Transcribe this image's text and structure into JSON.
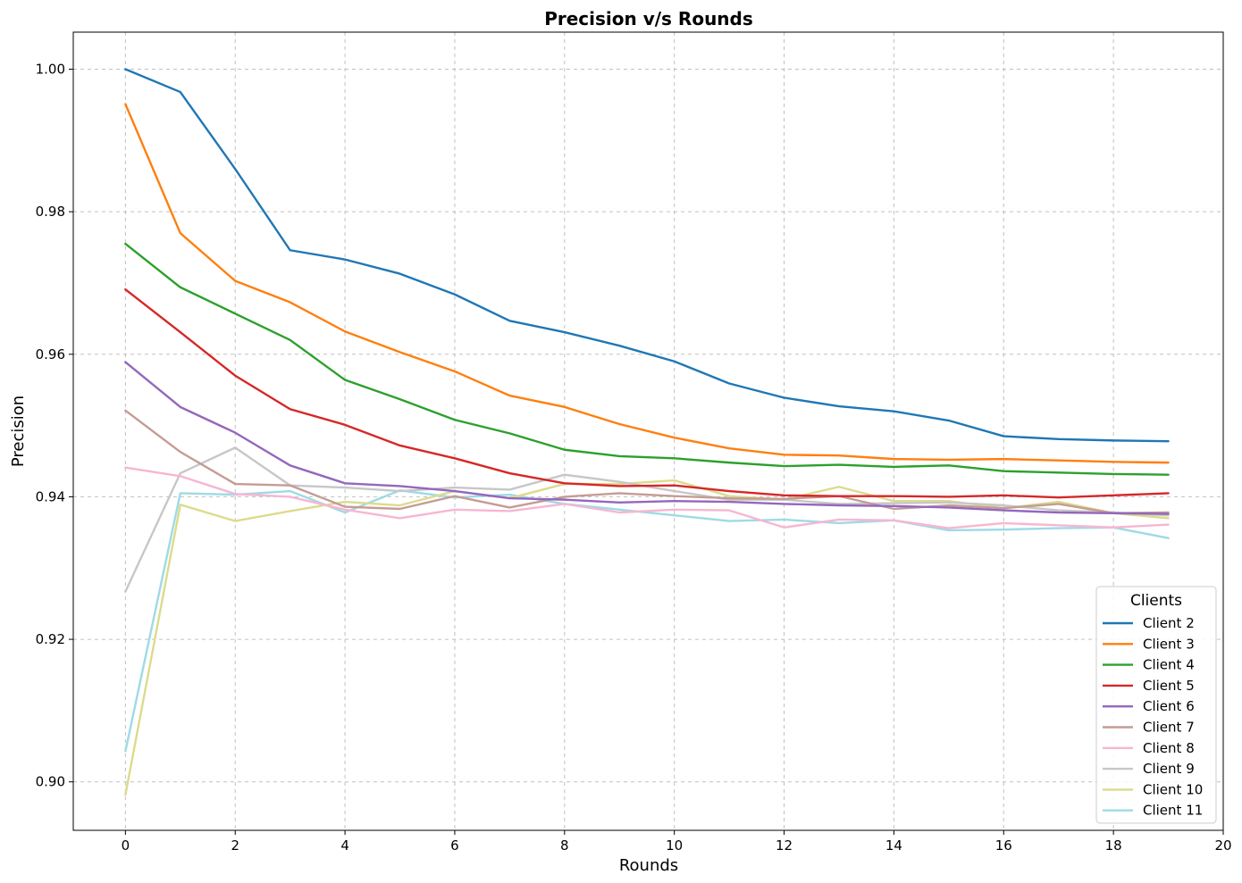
{
  "chart_data": {
    "type": "line",
    "title": "Precision v/s Rounds",
    "xlabel": "Rounds",
    "ylabel": "Precision",
    "xlim": [
      -0.95,
      20
    ],
    "ylim": [
      0.8932,
      1.0052
    ],
    "xticks": [
      0,
      2,
      4,
      6,
      8,
      10,
      12,
      14,
      16,
      18,
      20
    ],
    "yticks": [
      0.9,
      0.92,
      0.94,
      0.96,
      0.98,
      1.0
    ],
    "ytick_labels": [
      "0.90",
      "0.92",
      "0.94",
      "0.96",
      "0.98",
      "1.00"
    ],
    "grid": true,
    "legend": {
      "title": "Clients",
      "placement": "lower-right"
    },
    "x": [
      0,
      1,
      2,
      3,
      4,
      5,
      6,
      7,
      8,
      9,
      10,
      11,
      12,
      13,
      14,
      15,
      16,
      17,
      18,
      19
    ],
    "series": [
      {
        "name": "Client 2",
        "color": "#1f77b4",
        "values": [
          1.0,
          0.9968,
          0.986,
          0.9746,
          0.9733,
          0.9713,
          0.9684,
          0.9647,
          0.9631,
          0.9612,
          0.959,
          0.9559,
          0.9539,
          0.9527,
          0.952,
          0.9507,
          0.9485,
          0.9481,
          0.9479,
          0.9478
        ]
      },
      {
        "name": "Client 3",
        "color": "#ff7f0e",
        "values": [
          0.9951,
          0.977,
          0.9703,
          0.9673,
          0.9632,
          0.9603,
          0.9576,
          0.9542,
          0.9526,
          0.9502,
          0.9483,
          0.9468,
          0.9459,
          0.9458,
          0.9453,
          0.9452,
          0.9453,
          0.9451,
          0.9449,
          0.9448
        ]
      },
      {
        "name": "Client 4",
        "color": "#2ca02c",
        "values": [
          0.9755,
          0.9694,
          0.9657,
          0.962,
          0.9564,
          0.9537,
          0.9508,
          0.9489,
          0.9466,
          0.9457,
          0.9454,
          0.9448,
          0.9443,
          0.9445,
          0.9442,
          0.9444,
          0.9436,
          0.9434,
          0.9432,
          0.9431
        ]
      },
      {
        "name": "Client 5",
        "color": "#d62728",
        "values": [
          0.9691,
          0.9631,
          0.957,
          0.9523,
          0.9501,
          0.9472,
          0.9454,
          0.9433,
          0.9419,
          0.9415,
          0.9416,
          0.9408,
          0.9402,
          0.9401,
          0.9401,
          0.94,
          0.9402,
          0.9399,
          0.9402,
          0.9405
        ]
      },
      {
        "name": "Client 6",
        "color": "#9467bd",
        "values": [
          0.9589,
          0.9526,
          0.949,
          0.9444,
          0.9419,
          0.9415,
          0.9408,
          0.9398,
          0.9396,
          0.9392,
          0.9394,
          0.9393,
          0.939,
          0.9388,
          0.9387,
          0.9385,
          0.9381,
          0.9378,
          0.9377,
          0.9376
        ]
      },
      {
        "name": "Client 7",
        "color": "#c49c94",
        "values": [
          0.9521,
          0.9463,
          0.9418,
          0.9416,
          0.9386,
          0.9383,
          0.9401,
          0.9385,
          0.94,
          0.9405,
          0.9401,
          0.9398,
          0.9397,
          0.9401,
          0.9383,
          0.9388,
          0.9384,
          0.939,
          0.9377,
          0.9378
        ]
      },
      {
        "name": "Client 8",
        "color": "#f7b6d2",
        "values": [
          0.9441,
          0.9429,
          0.9404,
          0.94,
          0.9382,
          0.937,
          0.9382,
          0.938,
          0.939,
          0.9378,
          0.9382,
          0.9381,
          0.9357,
          0.9368,
          0.9367,
          0.9356,
          0.9363,
          0.936,
          0.9357,
          0.9361
        ]
      },
      {
        "name": "Client 9",
        "color": "#c7c7c7",
        "values": [
          0.9267,
          0.9433,
          0.9469,
          0.9416,
          0.9413,
          0.9408,
          0.9413,
          0.941,
          0.9431,
          0.9421,
          0.9408,
          0.9396,
          0.9396,
          0.939,
          0.9391,
          0.9392,
          0.9388,
          0.9381,
          0.9378,
          0.9374
        ]
      },
      {
        "name": "Client 10",
        "color": "#dbdb8d",
        "values": [
          0.8982,
          0.9389,
          0.9366,
          0.938,
          0.9393,
          0.9388,
          0.9408,
          0.9398,
          0.9418,
          0.9418,
          0.9423,
          0.9401,
          0.9396,
          0.9414,
          0.9394,
          0.9394,
          0.9384,
          0.9393,
          0.9377,
          0.937
        ]
      },
      {
        "name": "Client 11",
        "color": "#9edae5",
        "values": [
          0.9043,
          0.9405,
          0.9403,
          0.9408,
          0.9378,
          0.9409,
          0.9399,
          0.9403,
          0.939,
          0.9382,
          0.9374,
          0.9366,
          0.9368,
          0.9363,
          0.9367,
          0.9353,
          0.9354,
          0.9356,
          0.9357,
          0.9342
        ]
      }
    ]
  }
}
